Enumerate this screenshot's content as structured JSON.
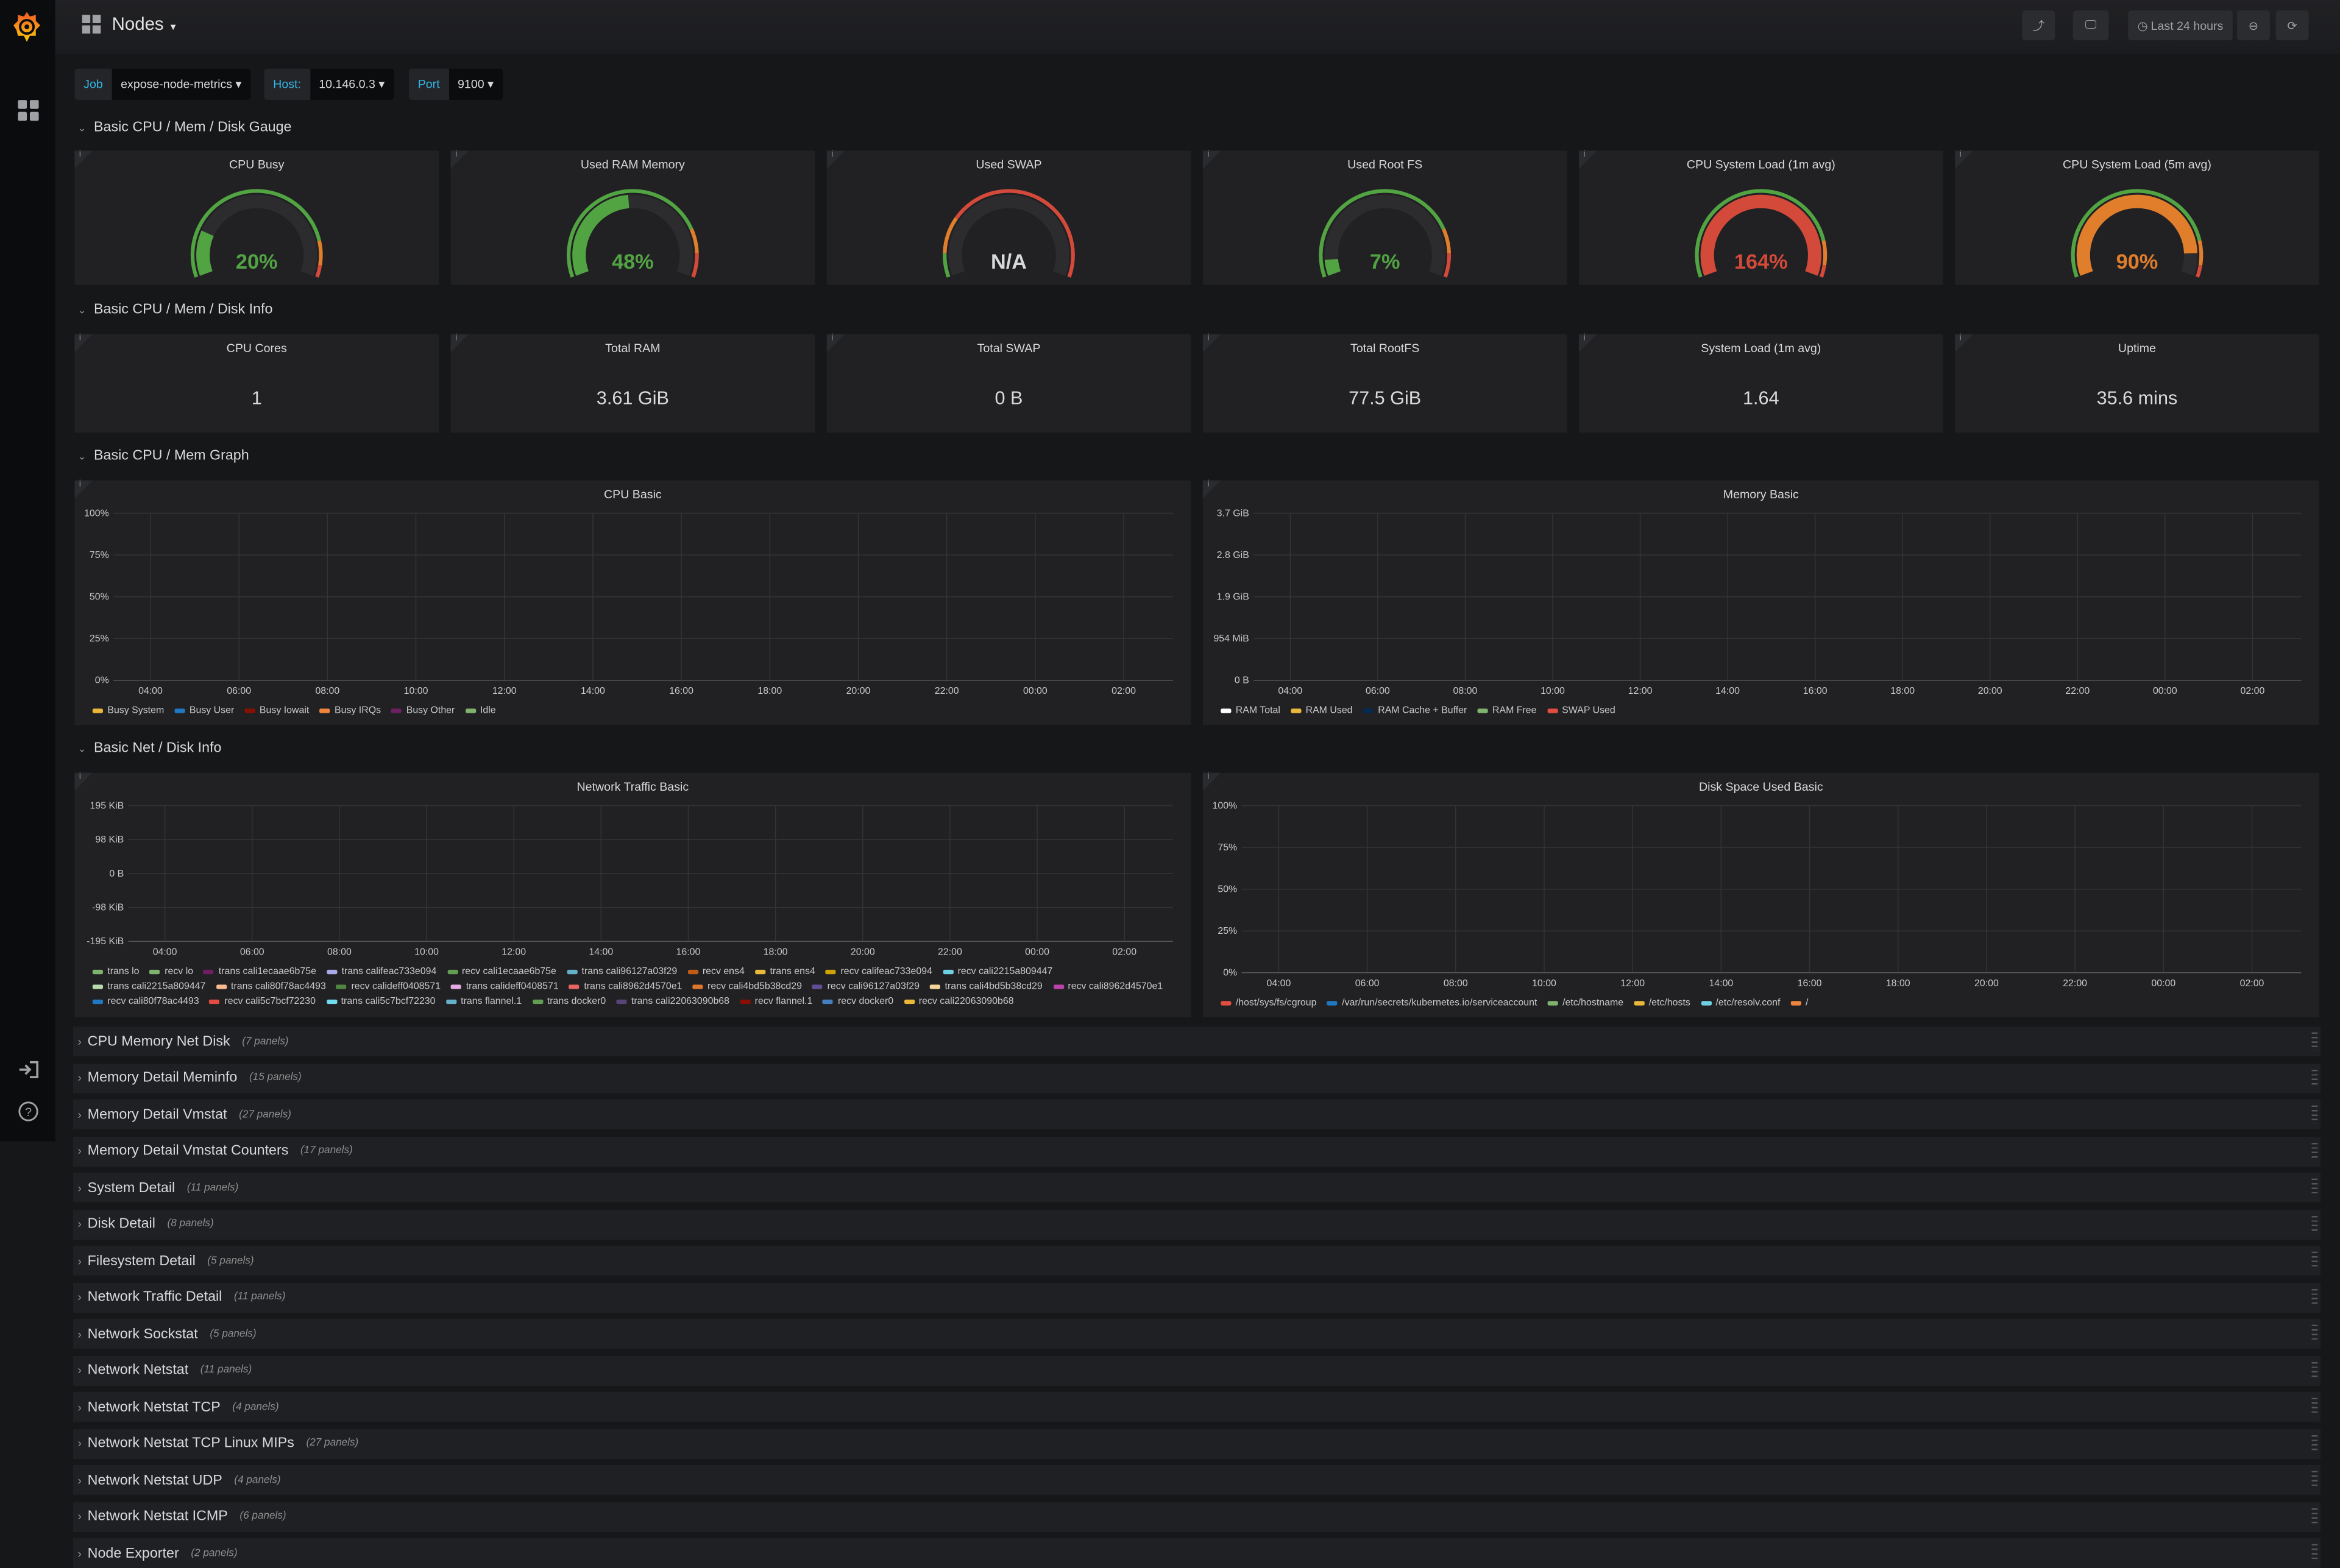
{
  "header": {
    "title": "Nodes",
    "time_range": "Last 24 hours",
    "icons": [
      "share-icon",
      "tv-mode-icon",
      "clock-icon",
      "zoom-out-icon",
      "refresh-icon"
    ]
  },
  "variables": [
    {
      "label": "Job",
      "value": "expose-node-metrics"
    },
    {
      "label": "Host:",
      "value": "10.146.0.3"
    },
    {
      "label": "Port",
      "value": "9100"
    }
  ],
  "rows": {
    "gauge": "Basic CPU / Mem / Disk Gauge",
    "info": "Basic CPU / Mem / Disk Info",
    "graph": "Basic CPU / Mem Graph",
    "net": "Basic Net / Disk Info"
  },
  "colors": {
    "green": "#52a443",
    "orange": "#e07e2c",
    "red": "#d44a3a",
    "bg": "#161719",
    "panel": "#212124"
  },
  "gauges": [
    {
      "title": "CPU Busy",
      "value": 20,
      "text": "20%",
      "thresholds": [
        85,
        95
      ]
    },
    {
      "title": "Used RAM Memory",
      "value": 48,
      "text": "48%",
      "thresholds": [
        80,
        90
      ]
    },
    {
      "title": "Used SWAP",
      "value": null,
      "text": "N/A",
      "thresholds": [
        10,
        25
      ]
    },
    {
      "title": "Used Root FS",
      "value": 7,
      "text": "7%",
      "thresholds": [
        80,
        90
      ]
    },
    {
      "title": "CPU System Load (1m avg)",
      "value": 164,
      "text": "164%",
      "thresholds": [
        85,
        95
      ]
    },
    {
      "title": "CPU System Load (5m avg)",
      "value": 90,
      "text": "90%",
      "thresholds": [
        85,
        95
      ]
    }
  ],
  "stats": [
    {
      "title": "CPU Cores",
      "value": "1"
    },
    {
      "title": "Total RAM",
      "value": "3.61 GiB"
    },
    {
      "title": "Total SWAP",
      "value": "0 B"
    },
    {
      "title": "Total RootFS",
      "value": "77.5 GiB"
    },
    {
      "title": "System Load (1m avg)",
      "value": "1.64"
    },
    {
      "title": "Uptime",
      "value": "35.6 mins"
    }
  ],
  "chart_data": [
    {
      "type": "line",
      "title": "CPU Basic",
      "x_ticks": [
        "04:00",
        "06:00",
        "08:00",
        "10:00",
        "12:00",
        "14:00",
        "16:00",
        "18:00",
        "20:00",
        "22:00",
        "00:00",
        "02:00"
      ],
      "y_ticks": [
        "100%",
        "75%",
        "50%",
        "25%",
        "0%"
      ],
      "grid": true,
      "legend_placement": "bottom",
      "legend": [
        {
          "name": "Busy System",
          "color": "#eab839"
        },
        {
          "name": "Busy User",
          "color": "#1f78c1"
        },
        {
          "name": "Busy Iowait",
          "color": "#890f02"
        },
        {
          "name": "Busy IRQs",
          "color": "#ef843c"
        },
        {
          "name": "Busy Other",
          "color": "#6d1f62"
        },
        {
          "name": "Idle",
          "color": "#7eb26d"
        }
      ]
    },
    {
      "type": "line",
      "title": "Memory Basic",
      "x_ticks": [
        "04:00",
        "06:00",
        "08:00",
        "10:00",
        "12:00",
        "14:00",
        "16:00",
        "18:00",
        "20:00",
        "22:00",
        "00:00",
        "02:00"
      ],
      "y_ticks": [
        "3.7 GiB",
        "2.8 GiB",
        "1.9 GiB",
        "954 MiB",
        "0 B"
      ],
      "grid": true,
      "legend_placement": "bottom",
      "legend": [
        {
          "name": "RAM Total",
          "color": "#ffffff"
        },
        {
          "name": "RAM Used",
          "color": "#eab839"
        },
        {
          "name": "RAM Cache + Buffer",
          "color": "#052b51"
        },
        {
          "name": "RAM Free",
          "color": "#7eb26d"
        },
        {
          "name": "SWAP Used",
          "color": "#e24d42"
        }
      ]
    },
    {
      "type": "line",
      "title": "Network Traffic Basic",
      "x_ticks": [
        "04:00",
        "06:00",
        "08:00",
        "10:00",
        "12:00",
        "14:00",
        "16:00",
        "18:00",
        "20:00",
        "22:00",
        "00:00",
        "02:00"
      ],
      "y_ticks": [
        "195 KiB",
        "98 KiB",
        "0 B",
        "-98 KiB",
        "-195 KiB"
      ],
      "grid": true,
      "legend_placement": "bottom",
      "legend": [
        {
          "name": "trans lo",
          "color": "#7eb26d"
        },
        {
          "name": "recv lo",
          "color": "#7eb26d"
        },
        {
          "name": "trans cali1ecaae6b75e",
          "color": "#6d1f62"
        },
        {
          "name": "trans califeac733e094",
          "color": "#a9a9e8"
        },
        {
          "name": "recv cali1ecaae6b75e",
          "color": "#629e51"
        },
        {
          "name": "trans cali96127a03f29",
          "color": "#64b0c8"
        },
        {
          "name": "recv ens4",
          "color": "#c15c17"
        },
        {
          "name": "trans ens4",
          "color": "#eab839"
        },
        {
          "name": "recv califeac733e094",
          "color": "#cca300"
        },
        {
          "name": "recv cali2215a809447",
          "color": "#6ed0e0"
        },
        {
          "name": "trans cali2215a809447",
          "color": "#b7dbab"
        },
        {
          "name": "trans cali80f78ac4493",
          "color": "#f9ba8f"
        },
        {
          "name": "recv calideff0408571",
          "color": "#508642"
        },
        {
          "name": "trans calideff0408571",
          "color": "#e5a8e2"
        },
        {
          "name": "trans cali8962d4570e1",
          "color": "#ea6460"
        },
        {
          "name": "recv cali4bd5b38cd29",
          "color": "#e0752d"
        },
        {
          "name": "recv cali96127a03f29",
          "color": "#614d93"
        },
        {
          "name": "trans cali4bd5b38cd29",
          "color": "#f4d598"
        },
        {
          "name": "recv cali8962d4570e1",
          "color": "#ba43a9"
        },
        {
          "name": "recv cali80f78ac4493",
          "color": "#1f78c1"
        },
        {
          "name": "recv cali5c7bcf72230",
          "color": "#e24d42"
        },
        {
          "name": "trans cali5c7bcf72230",
          "color": "#70dbed"
        },
        {
          "name": "trans flannel.1",
          "color": "#64b0c8"
        },
        {
          "name": "trans docker0",
          "color": "#629e51"
        },
        {
          "name": "trans cali22063090b68",
          "color": "#584477"
        },
        {
          "name": "recv flannel.1",
          "color": "#890f02"
        },
        {
          "name": "recv docker0",
          "color": "#447ebc"
        },
        {
          "name": "recv cali22063090b68",
          "color": "#eab839"
        }
      ]
    },
    {
      "type": "line",
      "title": "Disk Space Used Basic",
      "x_ticks": [
        "04:00",
        "06:00",
        "08:00",
        "10:00",
        "12:00",
        "14:00",
        "16:00",
        "18:00",
        "20:00",
        "22:00",
        "00:00",
        "02:00"
      ],
      "y_ticks": [
        "100%",
        "75%",
        "50%",
        "25%",
        "0%"
      ],
      "grid": true,
      "legend_placement": "bottom",
      "legend": [
        {
          "name": "/host/sys/fs/cgroup",
          "color": "#e24d42"
        },
        {
          "name": "/var/run/secrets/kubernetes.io/serviceaccount",
          "color": "#1f78c1"
        },
        {
          "name": "/etc/hostname",
          "color": "#7eb26d"
        },
        {
          "name": "/etc/hosts",
          "color": "#eab839"
        },
        {
          "name": "/etc/resolv.conf",
          "color": "#6ed0e0"
        },
        {
          "name": "/",
          "color": "#ef843c"
        }
      ]
    }
  ],
  "collapsed_rows": [
    {
      "title": "CPU Memory Net Disk",
      "count": "(7 panels)"
    },
    {
      "title": "Memory Detail Meminfo",
      "count": "(15 panels)"
    },
    {
      "title": "Memory Detail Vmstat",
      "count": "(27 panels)"
    },
    {
      "title": "Memory Detail Vmstat Counters",
      "count": "(17 panels)"
    },
    {
      "title": "System Detail",
      "count": "(11 panels)"
    },
    {
      "title": "Disk Detail",
      "count": "(8 panels)"
    },
    {
      "title": "Filesystem Detail",
      "count": "(5 panels)"
    },
    {
      "title": "Network Traffic Detail",
      "count": "(11 panels)"
    },
    {
      "title": "Network Sockstat",
      "count": "(5 panels)"
    },
    {
      "title": "Network Netstat",
      "count": "(11 panels)"
    },
    {
      "title": "Network Netstat TCP",
      "count": "(4 panels)"
    },
    {
      "title": "Network Netstat TCP Linux MIPs",
      "count": "(27 panels)"
    },
    {
      "title": "Network Netstat UDP",
      "count": "(4 panels)"
    },
    {
      "title": "Network Netstat ICMP",
      "count": "(6 panels)"
    },
    {
      "title": "Node Exporter",
      "count": "(2 panels)"
    }
  ]
}
